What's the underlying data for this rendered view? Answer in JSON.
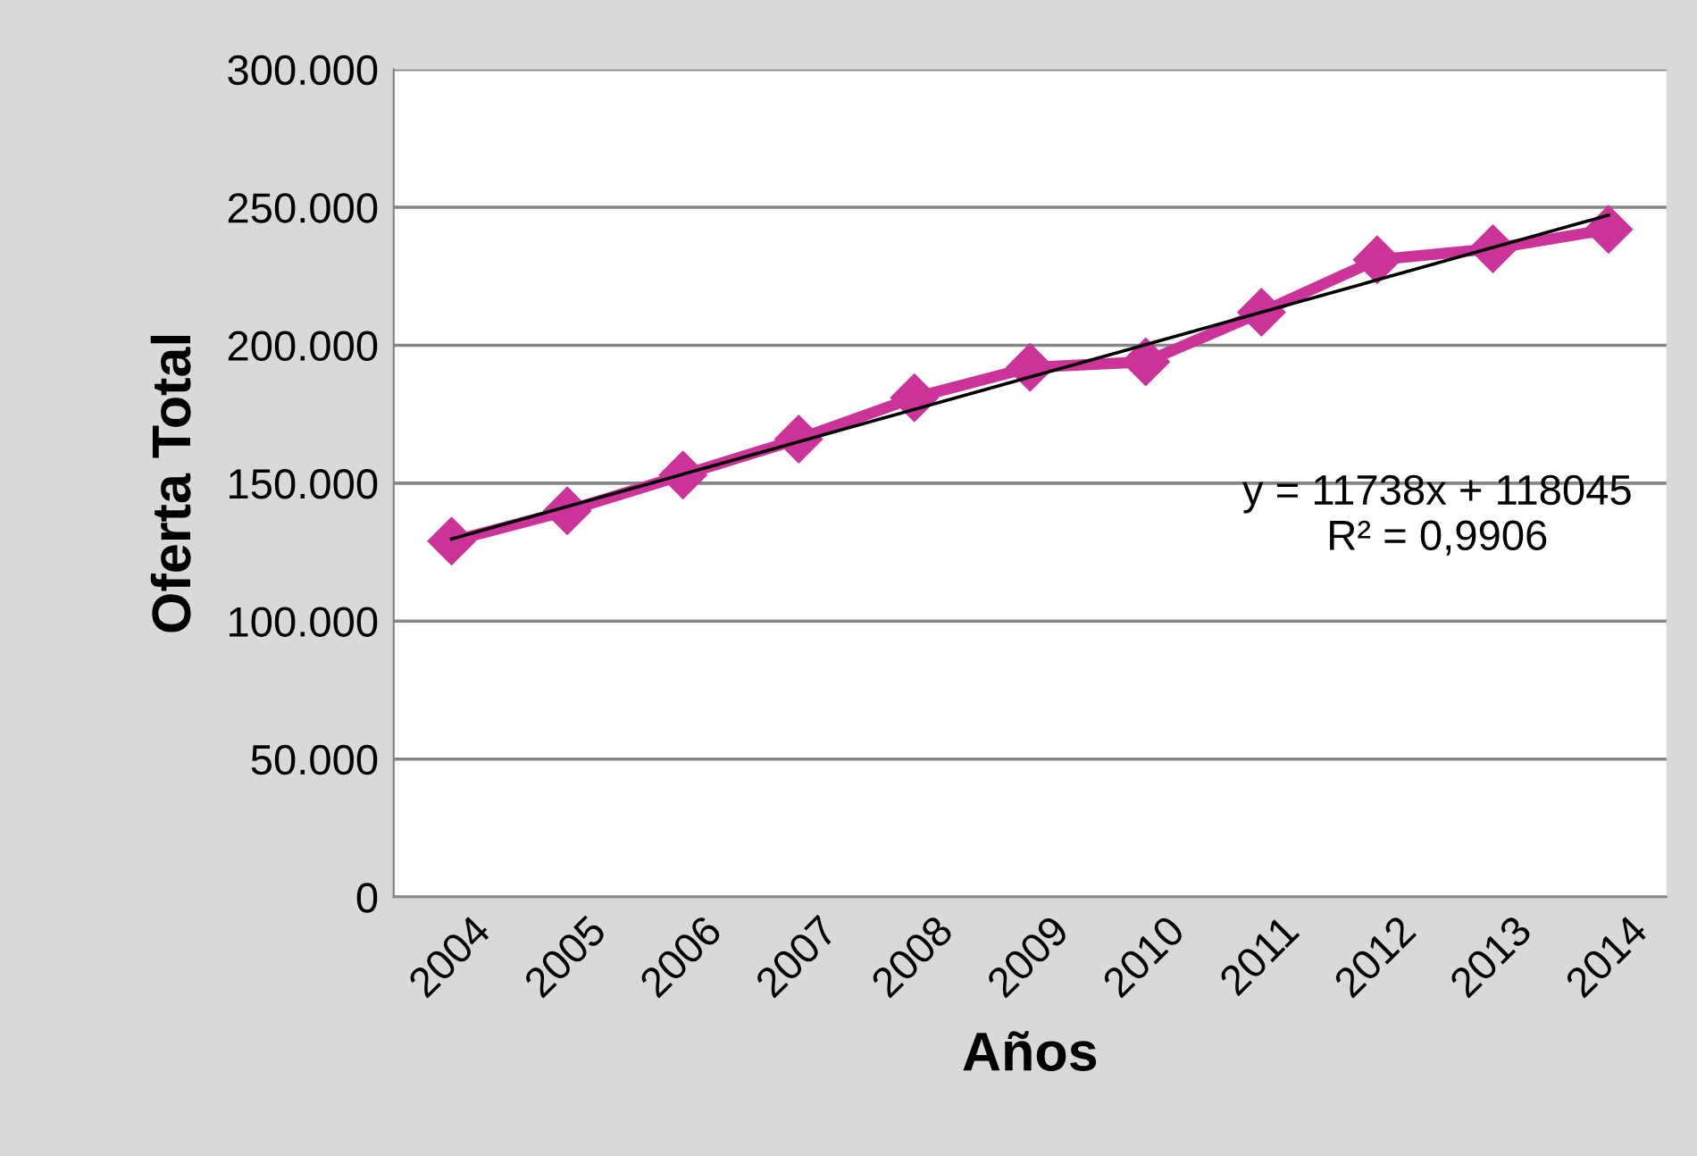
{
  "chart_data": {
    "type": "line",
    "xlabel": "Años",
    "ylabel": "Oferta Total",
    "categories": [
      "2004",
      "2005",
      "2006",
      "2007",
      "2008",
      "2009",
      "2010",
      "2011",
      "2012",
      "2013",
      "2014"
    ],
    "series": [
      {
        "color": "#cc3399",
        "values": [
          129000,
          140000,
          153000,
          166000,
          181000,
          192000,
          194000,
          212000,
          231000,
          235000,
          242000
        ],
        "marker": "diamond"
      },
      {
        "color": "#000000",
        "values": [
          129783,
          141521,
          153259,
          164997,
          176735,
          188473,
          200211,
          211949,
          223687,
          235425,
          247163
        ],
        "marker": "none"
      }
    ],
    "ylim": [
      0,
      300000
    ],
    "yticks": [
      {
        "value": 0,
        "label": "0"
      },
      {
        "value": 50000,
        "label": "50.000"
      },
      {
        "value": 100000,
        "label": "100.000"
      },
      {
        "value": 150000,
        "label": "150.000"
      },
      {
        "value": 200000,
        "label": "200.000"
      },
      {
        "value": 250000,
        "label": "250.000"
      },
      {
        "value": 300000,
        "label": "300.000"
      }
    ],
    "grid": "y",
    "legend": false,
    "annotations": [
      "y = 11738x + 118045\nR² = 0,9906"
    ]
  }
}
